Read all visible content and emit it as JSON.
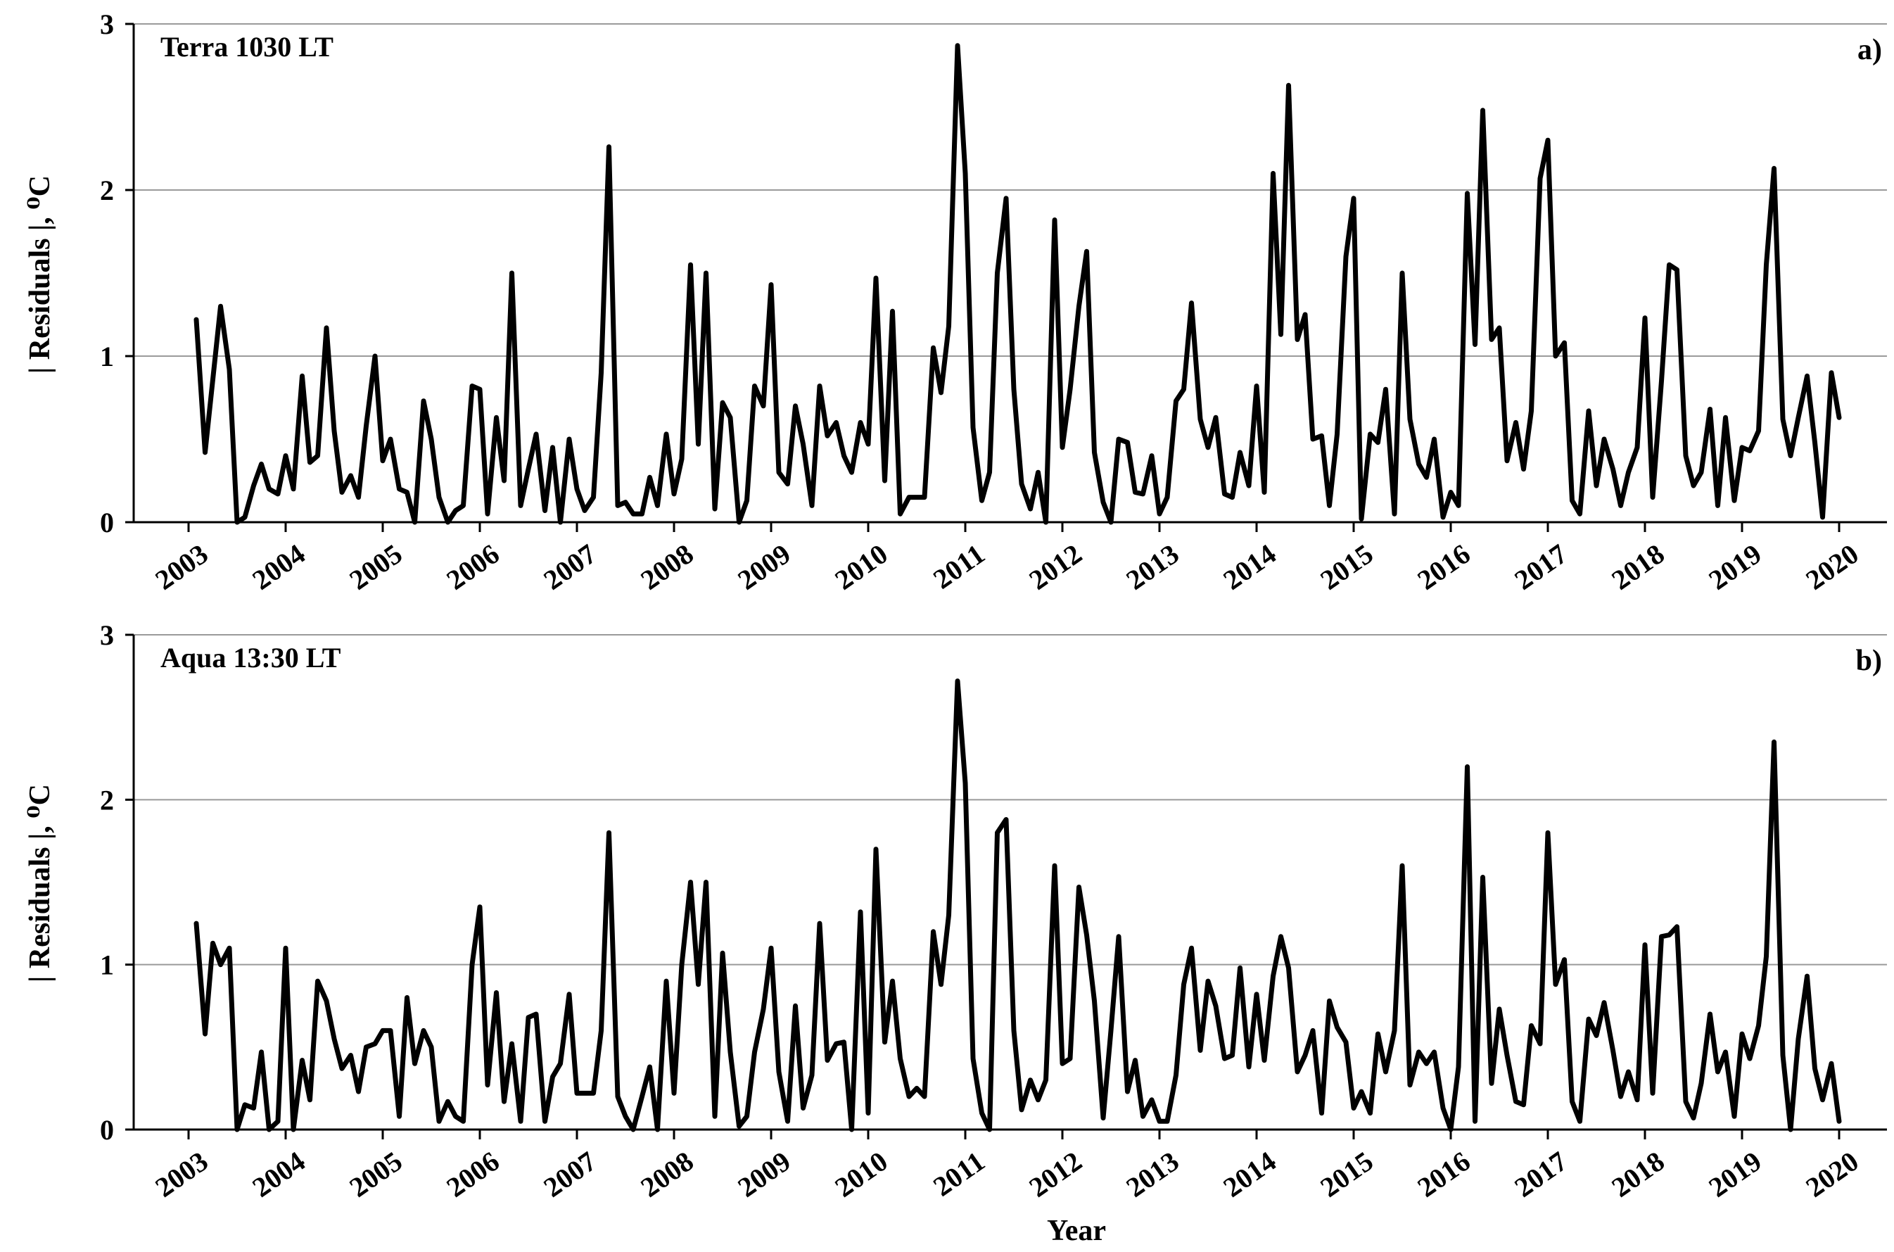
{
  "x_axis_title": "Year",
  "chart_data": [
    {
      "type": "line",
      "panel_label": "Terra  1030 LT",
      "panel_letter": "a)",
      "ylabel": "| Residuals |,  ⁰C",
      "xlim": [
        2003,
        2020
      ],
      "ylim": [
        0,
        3
      ],
      "y_ticks": [
        0,
        1,
        2,
        3
      ],
      "x_ticks": [
        2003,
        2004,
        2005,
        2006,
        2007,
        2008,
        2009,
        2010,
        2011,
        2012,
        2013,
        2014,
        2015,
        2016,
        2017,
        2018,
        2019,
        2020
      ],
      "grid": "horizontal",
      "series": [
        {
          "x": [
            2003.08,
            2003.17,
            2003.33,
            2003.42,
            2003.5,
            2003.58,
            2003.67,
            2003.75,
            2003.83,
            2003.92,
            2004,
            2004.08,
            2004.17,
            2004.25,
            2004.33,
            2004.42,
            2004.5,
            2004.58,
            2004.67,
            2004.75,
            2004.83,
            2004.92,
            2005,
            2005.08,
            2005.17,
            2005.25,
            2005.33,
            2005.42,
            2005.5,
            2005.58,
            2005.67,
            2005.75,
            2005.83,
            2005.92,
            2006,
            2006.08,
            2006.17,
            2006.25,
            2006.33,
            2006.42,
            2006.5,
            2006.58,
            2006.67,
            2006.75,
            2006.83,
            2006.92,
            2007,
            2007.08,
            2007.17,
            2007.25,
            2007.33,
            2007.42,
            2007.5,
            2007.58,
            2007.67,
            2007.75,
            2007.83,
            2007.92,
            2008,
            2008.08,
            2008.17,
            2008.25,
            2008.33,
            2008.42,
            2008.5,
            2008.58,
            2008.67,
            2008.75,
            2008.83,
            2008.92,
            2009,
            2009.08,
            2009.17,
            2009.25,
            2009.33,
            2009.42,
            2009.5,
            2009.58,
            2009.67,
            2009.75,
            2009.83,
            2009.92,
            2010,
            2010.08,
            2010.17,
            2010.25,
            2010.33,
            2010.42,
            2010.5,
            2010.58,
            2010.67,
            2010.75,
            2010.83,
            2010.92,
            2011,
            2011.08,
            2011.17,
            2011.25,
            2011.33,
            2011.42,
            2011.5,
            2011.58,
            2011.67,
            2011.75,
            2011.83,
            2011.92,
            2012,
            2012.08,
            2012.17,
            2012.25,
            2012.33,
            2012.42,
            2012.5,
            2012.58,
            2012.67,
            2012.75,
            2012.83,
            2012.92,
            2013,
            2013.08,
            2013.17,
            2013.25,
            2013.33,
            2013.42,
            2013.5,
            2013.58,
            2013.67,
            2013.75,
            2013.83,
            2013.92,
            2014,
            2014.08,
            2014.17,
            2014.25,
            2014.33,
            2014.42,
            2014.5,
            2014.58,
            2014.67,
            2014.75,
            2014.83,
            2014.92,
            2015,
            2015.08,
            2015.17,
            2015.25,
            2015.33,
            2015.42,
            2015.5,
            2015.58,
            2015.67,
            2015.75,
            2015.83,
            2015.92,
            2016,
            2016.08,
            2016.17,
            2016.25,
            2016.33,
            2016.42,
            2016.5,
            2016.58,
            2016.67,
            2016.75,
            2016.83,
            2016.92,
            2017,
            2017.08,
            2017.17,
            2017.25,
            2017.33,
            2017.42,
            2017.5,
            2017.58,
            2017.67,
            2017.75,
            2017.83,
            2017.92,
            2018,
            2018.08,
            2018.17,
            2018.25,
            2018.33,
            2018.42,
            2018.5,
            2018.58,
            2018.67,
            2018.75,
            2018.83,
            2018.92,
            2019,
            2019.08,
            2019.17,
            2019.25,
            2019.33,
            2019.42,
            2019.5,
            2019.58,
            2019.67,
            2019.75,
            2019.83,
            2019.92,
            2020
          ],
          "values": [
            1.22,
            0.42,
            1.3,
            0.92,
            0.0,
            0.03,
            0.22,
            0.35,
            0.2,
            0.17,
            0.4,
            0.2,
            0.88,
            0.36,
            0.4,
            1.17,
            0.55,
            0.18,
            0.28,
            0.15,
            0.58,
            1.0,
            0.37,
            0.5,
            0.2,
            0.18,
            0.0,
            0.73,
            0.5,
            0.15,
            0.0,
            0.07,
            0.1,
            0.82,
            0.8,
            0.05,
            0.63,
            0.25,
            1.5,
            0.1,
            0.32,
            0.53,
            0.07,
            0.45,
            0.0,
            0.5,
            0.2,
            0.07,
            0.15,
            0.9,
            2.26,
            0.1,
            0.12,
            0.05,
            0.05,
            0.27,
            0.1,
            0.53,
            0.17,
            0.38,
            1.55,
            0.47,
            1.5,
            0.08,
            0.72,
            0.63,
            0.0,
            0.13,
            0.82,
            0.7,
            1.43,
            0.3,
            0.23,
            0.7,
            0.47,
            0.1,
            0.82,
            0.52,
            0.6,
            0.4,
            0.3,
            0.6,
            0.47,
            1.47,
            0.25,
            1.27,
            0.05,
            0.15,
            0.15,
            0.15,
            1.05,
            0.78,
            1.18,
            2.87,
            2.1,
            0.57,
            0.13,
            0.3,
            1.5,
            1.95,
            0.8,
            0.23,
            0.08,
            0.3,
            0.0,
            1.82,
            0.45,
            0.8,
            1.3,
            1.63,
            0.42,
            0.12,
            0.0,
            0.5,
            0.48,
            0.18,
            0.17,
            0.4,
            0.05,
            0.15,
            0.73,
            0.8,
            1.32,
            0.62,
            0.45,
            0.63,
            0.17,
            0.15,
            0.42,
            0.22,
            0.82,
            0.18,
            2.1,
            1.13,
            2.63,
            1.1,
            1.25,
            0.5,
            0.52,
            0.1,
            0.53,
            1.6,
            1.95,
            0.02,
            0.53,
            0.48,
            0.8,
            0.05,
            1.5,
            0.62,
            0.35,
            0.27,
            0.5,
            0.03,
            0.18,
            0.1,
            1.98,
            1.07,
            2.48,
            1.1,
            1.17,
            0.37,
            0.6,
            0.32,
            0.67,
            2.07,
            2.3,
            1.0,
            1.08,
            0.13,
            0.05,
            0.67,
            0.22,
            0.5,
            0.32,
            0.1,
            0.3,
            0.45,
            1.23,
            0.15,
            0.85,
            1.55,
            1.52,
            0.4,
            0.22,
            0.3,
            0.68,
            0.1,
            0.63,
            0.13,
            0.45,
            0.43,
            0.55,
            1.55,
            2.13,
            0.62,
            0.4,
            0.63,
            0.88,
            0.48,
            0.03,
            0.9,
            0.63
          ]
        }
      ]
    },
    {
      "type": "line",
      "panel_label": "Aqua  13:30 LT",
      "panel_letter": "b)",
      "ylabel": "| Residuals |,  ⁰C",
      "xlim": [
        2003,
        2020
      ],
      "ylim": [
        0,
        3
      ],
      "y_ticks": [
        0,
        1,
        2,
        3
      ],
      "x_ticks": [
        2003,
        2004,
        2005,
        2006,
        2007,
        2008,
        2009,
        2010,
        2011,
        2012,
        2013,
        2014,
        2015,
        2016,
        2017,
        2018,
        2019,
        2020
      ],
      "grid": "horizontal",
      "series": [
        {
          "x": [
            2003.08,
            2003.17,
            2003.25,
            2003.33,
            2003.42,
            2003.5,
            2003.58,
            2003.67,
            2003.75,
            2003.83,
            2003.92,
            2004,
            2004.08,
            2004.17,
            2004.25,
            2004.33,
            2004.42,
            2004.5,
            2004.58,
            2004.67,
            2004.75,
            2004.83,
            2004.92,
            2005,
            2005.08,
            2005.17,
            2005.25,
            2005.33,
            2005.42,
            2005.5,
            2005.58,
            2005.67,
            2005.75,
            2005.83,
            2005.92,
            2006,
            2006.08,
            2006.17,
            2006.25,
            2006.33,
            2006.42,
            2006.5,
            2006.58,
            2006.67,
            2006.75,
            2006.83,
            2006.92,
            2007,
            2007.08,
            2007.17,
            2007.25,
            2007.33,
            2007.42,
            2007.5,
            2007.58,
            2007.67,
            2007.75,
            2007.83,
            2007.92,
            2008,
            2008.08,
            2008.17,
            2008.25,
            2008.33,
            2008.42,
            2008.5,
            2008.58,
            2008.67,
            2008.75,
            2008.83,
            2008.92,
            2009,
            2009.08,
            2009.17,
            2009.25,
            2009.33,
            2009.42,
            2009.5,
            2009.58,
            2009.67,
            2009.75,
            2009.83,
            2009.92,
            2010,
            2010.08,
            2010.17,
            2010.25,
            2010.33,
            2010.42,
            2010.5,
            2010.58,
            2010.67,
            2010.75,
            2010.83,
            2010.92,
            2011,
            2011.08,
            2011.17,
            2011.25,
            2011.33,
            2011.42,
            2011.5,
            2011.58,
            2011.67,
            2011.75,
            2011.83,
            2011.92,
            2012,
            2012.08,
            2012.17,
            2012.25,
            2012.33,
            2012.42,
            2012.5,
            2012.58,
            2012.67,
            2012.75,
            2012.83,
            2012.92,
            2013,
            2013.08,
            2013.17,
            2013.25,
            2013.33,
            2013.42,
            2013.5,
            2013.58,
            2013.67,
            2013.75,
            2013.83,
            2013.92,
            2014,
            2014.08,
            2014.17,
            2014.25,
            2014.33,
            2014.42,
            2014.5,
            2014.58,
            2014.67,
            2014.75,
            2014.83,
            2014.92,
            2015,
            2015.08,
            2015.17,
            2015.25,
            2015.33,
            2015.42,
            2015.5,
            2015.58,
            2015.67,
            2015.75,
            2015.83,
            2015.92,
            2016,
            2016.08,
            2016.17,
            2016.25,
            2016.33,
            2016.42,
            2016.5,
            2016.58,
            2016.67,
            2016.75,
            2016.83,
            2016.92,
            2017,
            2017.08,
            2017.17,
            2017.25,
            2017.33,
            2017.42,
            2017.5,
            2017.58,
            2017.67,
            2017.75,
            2017.83,
            2017.92,
            2018,
            2018.08,
            2018.17,
            2018.25,
            2018.33,
            2018.42,
            2018.5,
            2018.58,
            2018.67,
            2018.75,
            2018.83,
            2018.92,
            2019,
            2019.08,
            2019.17,
            2019.25,
            2019.33,
            2019.42,
            2019.5,
            2019.58,
            2019.67,
            2019.75,
            2019.83,
            2019.92,
            2020
          ],
          "values": [
            1.25,
            0.58,
            1.13,
            1.0,
            1.1,
            0.0,
            0.15,
            0.13,
            0.47,
            0.0,
            0.05,
            1.1,
            0.0,
            0.42,
            0.18,
            0.9,
            0.78,
            0.55,
            0.37,
            0.45,
            0.23,
            0.5,
            0.52,
            0.6,
            0.6,
            0.08,
            0.8,
            0.4,
            0.6,
            0.5,
            0.05,
            0.17,
            0.08,
            0.05,
            1.0,
            1.35,
            0.27,
            0.83,
            0.17,
            0.52,
            0.05,
            0.68,
            0.7,
            0.05,
            0.32,
            0.4,
            0.82,
            0.22,
            0.22,
            0.22,
            0.6,
            1.8,
            0.2,
            0.08,
            0.0,
            0.2,
            0.38,
            0.0,
            0.9,
            0.22,
            1.0,
            1.5,
            0.88,
            1.5,
            0.08,
            1.07,
            0.47,
            0.02,
            0.08,
            0.47,
            0.73,
            1.1,
            0.35,
            0.05,
            0.75,
            0.13,
            0.33,
            1.25,
            0.42,
            0.52,
            0.53,
            0.0,
            1.32,
            0.1,
            1.7,
            0.53,
            0.9,
            0.43,
            0.2,
            0.25,
            0.2,
            1.2,
            0.88,
            1.3,
            2.72,
            2.1,
            0.43,
            0.1,
            0.0,
            1.8,
            1.88,
            0.6,
            0.12,
            0.3,
            0.18,
            0.3,
            1.6,
            0.4,
            0.43,
            1.47,
            1.18,
            0.78,
            0.07,
            0.6,
            1.17,
            0.23,
            0.42,
            0.08,
            0.18,
            0.05,
            0.05,
            0.33,
            0.88,
            1.1,
            0.48,
            0.9,
            0.75,
            0.43,
            0.45,
            0.98,
            0.38,
            0.82,
            0.42,
            0.93,
            1.17,
            0.98,
            0.35,
            0.45,
            0.6,
            0.1,
            0.78,
            0.62,
            0.53,
            0.13,
            0.23,
            0.1,
            0.58,
            0.35,
            0.6,
            1.6,
            0.27,
            0.47,
            0.4,
            0.47,
            0.13,
            0.0,
            0.38,
            2.2,
            0.05,
            1.53,
            0.28,
            0.73,
            0.45,
            0.17,
            0.15,
            0.63,
            0.52,
            1.8,
            0.88,
            1.03,
            0.17,
            0.05,
            0.67,
            0.57,
            0.77,
            0.48,
            0.2,
            0.35,
            0.18,
            1.12,
            0.22,
            1.17,
            1.18,
            1.23,
            0.17,
            0.07,
            0.28,
            0.7,
            0.35,
            0.47,
            0.08,
            0.58,
            0.43,
            0.63,
            1.05,
            2.35,
            0.45,
            0.0,
            0.55,
            0.93,
            0.37,
            0.18,
            0.4,
            0.05
          ]
        }
      ]
    }
  ]
}
